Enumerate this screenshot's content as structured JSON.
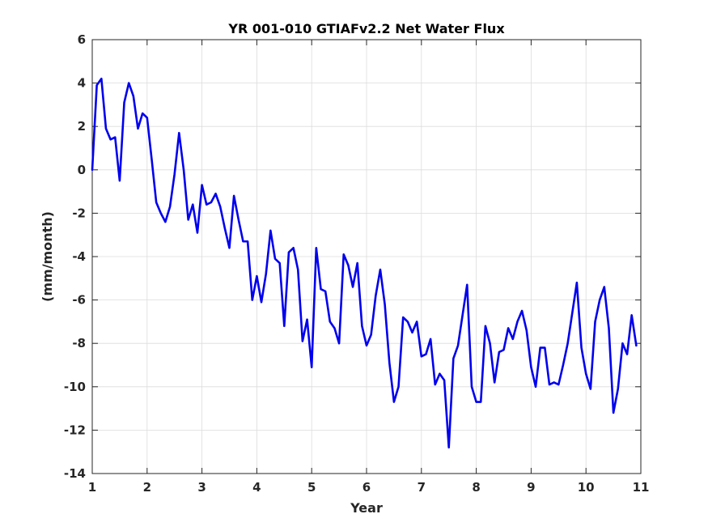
{
  "chart_data": {
    "type": "line",
    "title": "YR 001-010 GTIAFv2.2 Net Water Flux",
    "xlabel": "Year",
    "ylabel": "(mm/month)",
    "xlim": [
      1,
      11
    ],
    "ylim": [
      -14,
      6
    ],
    "xticks": [
      1,
      2,
      3,
      4,
      5,
      6,
      7,
      8,
      9,
      10,
      11
    ],
    "xtick_labels": [
      "1",
      "2",
      "3",
      "4",
      "5",
      "6",
      "7",
      "8",
      "9",
      "10",
      "11"
    ],
    "yticks": [
      -14,
      -12,
      -10,
      -8,
      -6,
      -4,
      -2,
      0,
      2,
      4,
      6
    ],
    "ytick_labels": [
      "-14",
      "-12",
      "-10",
      "-8",
      "-6",
      "-4",
      "-2",
      "0",
      "2",
      "4",
      "6"
    ],
    "grid": true,
    "series": [
      {
        "color": "#0000ee",
        "x": [
          1.0,
          1.083,
          1.167,
          1.25,
          1.333,
          1.417,
          1.5,
          1.583,
          1.667,
          1.75,
          1.833,
          1.917,
          2.0,
          2.083,
          2.167,
          2.25,
          2.333,
          2.417,
          2.5,
          2.583,
          2.667,
          2.75,
          2.833,
          2.917,
          3.0,
          3.083,
          3.167,
          3.25,
          3.333,
          3.417,
          3.5,
          3.583,
          3.667,
          3.75,
          3.833,
          3.917,
          4.0,
          4.083,
          4.167,
          4.25,
          4.333,
          4.417,
          4.5,
          4.583,
          4.667,
          4.75,
          4.833,
          4.917,
          5.0,
          5.083,
          5.167,
          5.25,
          5.333,
          5.417,
          5.5,
          5.583,
          5.667,
          5.75,
          5.833,
          5.917,
          6.0,
          6.083,
          6.167,
          6.25,
          6.333,
          6.417,
          6.5,
          6.583,
          6.667,
          6.75,
          6.833,
          6.917,
          7.0,
          7.083,
          7.167,
          7.25,
          7.333,
          7.417,
          7.5,
          7.583,
          7.667,
          7.75,
          7.833,
          7.917,
          8.0,
          8.083,
          8.167,
          8.25,
          8.333,
          8.417,
          8.5,
          8.583,
          8.667,
          8.75,
          8.833,
          8.917,
          9.0,
          9.083,
          9.167,
          9.25,
          9.333,
          9.417,
          9.5,
          9.583,
          9.667,
          9.75,
          9.833,
          9.917,
          10.0,
          10.083,
          10.167,
          10.25,
          10.333,
          10.417,
          10.5,
          10.583,
          10.667,
          10.75,
          10.833,
          10.917
        ],
        "y": [
          0.0,
          3.9,
          4.2,
          1.9,
          1.4,
          1.5,
          -0.5,
          3.1,
          4.0,
          3.4,
          1.9,
          2.6,
          2.4,
          0.5,
          -1.5,
          -2.0,
          -2.4,
          -1.7,
          -0.2,
          1.7,
          0.0,
          -2.3,
          -1.6,
          -2.9,
          -0.7,
          -1.6,
          -1.5,
          -1.1,
          -1.7,
          -2.7,
          -3.6,
          -1.2,
          -2.3,
          -3.3,
          -3.3,
          -6.0,
          -4.9,
          -6.1,
          -4.8,
          -2.8,
          -4.1,
          -4.3,
          -7.2,
          -3.8,
          -3.6,
          -4.6,
          -7.9,
          -6.9,
          -9.1,
          -3.6,
          -5.5,
          -5.6,
          -7.0,
          -7.3,
          -8.0,
          -3.9,
          -4.4,
          -5.4,
          -4.3,
          -7.2,
          -8.1,
          -7.6,
          -5.8,
          -4.6,
          -6.2,
          -8.9,
          -10.7,
          -10.0,
          -6.8,
          -7.0,
          -7.5,
          -7.0,
          -8.6,
          -8.5,
          -7.8,
          -9.9,
          -9.4,
          -9.7,
          -12.8,
          -8.7,
          -8.1,
          -6.7,
          -5.3,
          -10.0,
          -10.7,
          -10.7,
          -7.2,
          -8.0,
          -9.8,
          -8.4,
          -8.3,
          -7.3,
          -7.8,
          -7.0,
          -6.5,
          -7.4,
          -9.1,
          -10.0,
          -8.2,
          -8.2,
          -9.9,
          -9.8,
          -9.9,
          -9.0,
          -8.0,
          -6.6,
          -5.2,
          -8.2,
          -9.4,
          -10.1,
          -7.0,
          -6.0,
          -5.4,
          -7.3,
          -11.2,
          -10.1,
          -8.0,
          -8.5,
          -6.7,
          -8.1
        ]
      }
    ]
  }
}
